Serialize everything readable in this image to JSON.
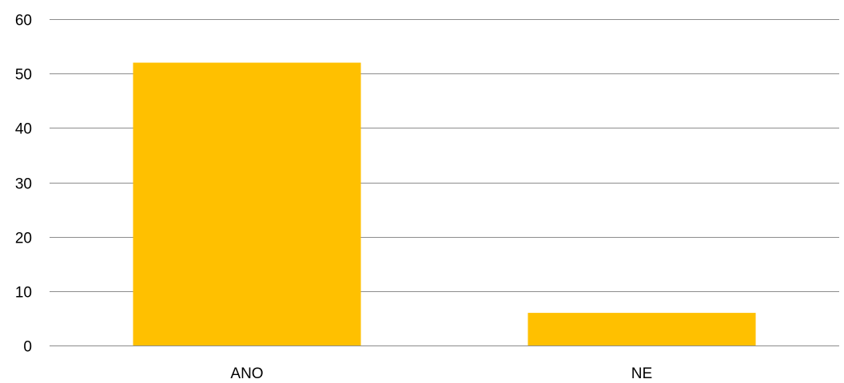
{
  "chart_data": {
    "type": "bar",
    "categories": [
      "ANO",
      "NE"
    ],
    "values": [
      52,
      6
    ],
    "ylim": [
      0,
      60
    ],
    "yticks": [
      0,
      10,
      20,
      30,
      40,
      50,
      60
    ],
    "grid": true,
    "bar_color": "#FFC000",
    "gridline_color": "#8C8C8C"
  }
}
